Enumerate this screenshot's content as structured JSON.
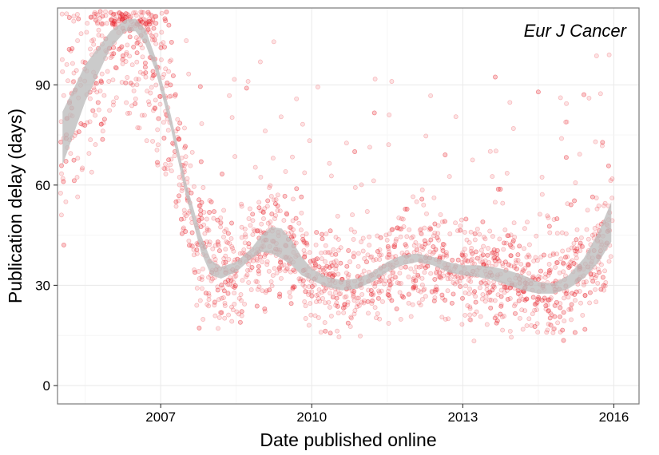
{
  "chart_data": {
    "type": "scatter",
    "title": "",
    "annotation": "Eur J Cancer",
    "xlabel": "Date published online",
    "ylabel": "Publication delay (days)",
    "x_ticks": [
      {
        "value": 2007,
        "label": "2007"
      },
      {
        "value": 2010,
        "label": "2010"
      },
      {
        "value": 2013,
        "label": "2013"
      },
      {
        "value": 2016,
        "label": "2016"
      }
    ],
    "y_ticks": [
      {
        "value": 0,
        "label": "0"
      },
      {
        "value": 30,
        "label": "30"
      },
      {
        "value": 60,
        "label": "60"
      },
      {
        "value": 90,
        "label": "90"
      }
    ],
    "xlim": [
      2004.95,
      2016.5
    ],
    "ylim": [
      -5.5,
      113
    ],
    "grid": true,
    "point_color": "#e8202a",
    "point_opacity": 0.13,
    "band_color": "#bdbdbd",
    "smooth_band": {
      "x": [
        2005.05,
        2005.5,
        2006.0,
        2006.3,
        2006.5,
        2006.7,
        2006.9,
        2007.2,
        2007.5,
        2007.8,
        2008.0,
        2008.2,
        2008.5,
        2008.8,
        2009.0,
        2009.2,
        2009.4,
        2009.6,
        2009.8,
        2010.0,
        2010.3,
        2010.6,
        2010.9,
        2011.2,
        2011.5,
        2011.8,
        2012.1,
        2012.4,
        2012.7,
        2013.0,
        2013.3,
        2013.6,
        2013.9,
        2014.2,
        2014.5,
        2014.8,
        2015.1,
        2015.4,
        2015.7,
        2015.95
      ],
      "lower": [
        66,
        85,
        101,
        106,
        106,
        102,
        94,
        77,
        57,
        40,
        33,
        32,
        34,
        38,
        40,
        39.5,
        38,
        36,
        33,
        31.5,
        29.5,
        28.5,
        29,
        31,
        34,
        36,
        37,
        36,
        34,
        33,
        32.5,
        31.5,
        30,
        28.5,
        27.5,
        27.5,
        29,
        32,
        37,
        43
      ],
      "upper": [
        82,
        96,
        106,
        109.5,
        109.8,
        106.5,
        98,
        81,
        61,
        45,
        37.5,
        35.5,
        37,
        41,
        45,
        47.5,
        47,
        43.5,
        38.5,
        35,
        32.5,
        31.5,
        32,
        34,
        37,
        39,
        39.5,
        38.5,
        37,
        36,
        36,
        35.5,
        34.5,
        33,
        31,
        30.5,
        33,
        38,
        46,
        55
      ]
    },
    "points": {
      "count": 2400,
      "x_range": [
        2005.0,
        2015.97
      ],
      "y_range": [
        13,
        112
      ],
      "trend": "follows the smoothed band; dense cluster of roughly 20–50 days from 2008 to 2015, 40–112 days in 2005–2007"
    }
  }
}
